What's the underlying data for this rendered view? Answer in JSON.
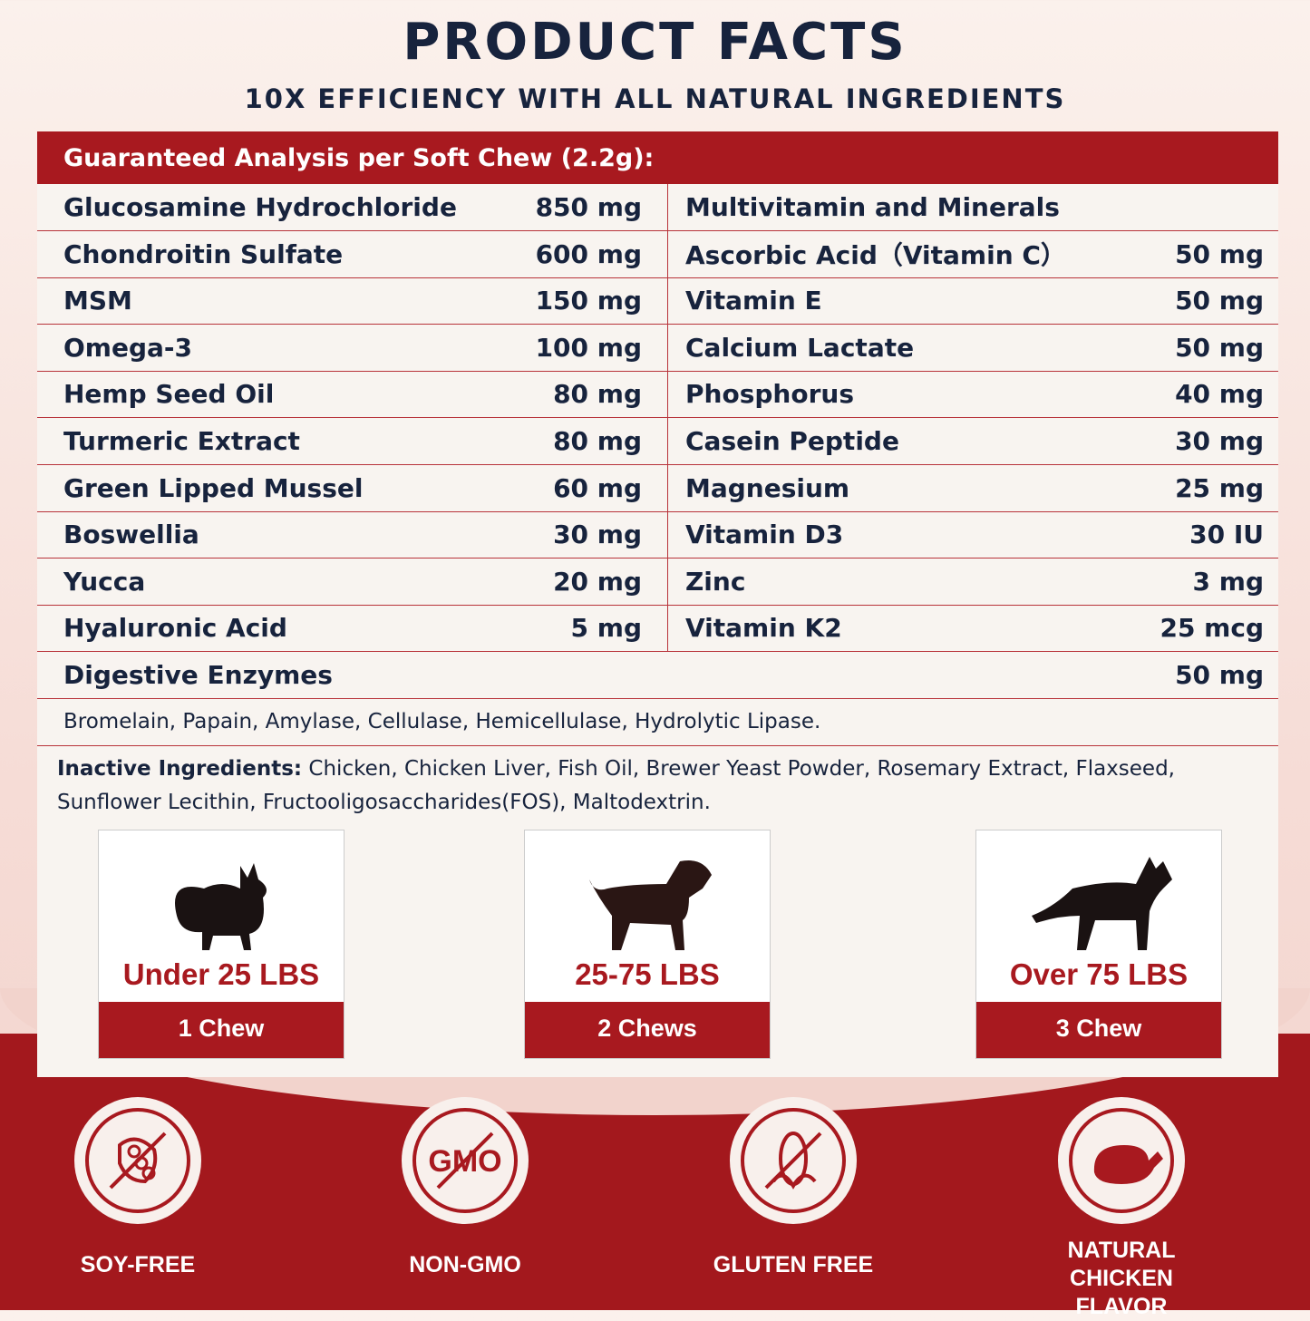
{
  "header": {
    "title": "PRODUCT FACTS",
    "subtitle": "10X EFFICIENCY WITH ALL NATURAL INGREDIENTS"
  },
  "table": {
    "heading": "Guaranteed Analysis per Soft Chew (2.2g):",
    "left": [
      {
        "name": "Glucosamine Hydrochloride",
        "amount": "850 mg"
      },
      {
        "name": "Chondroitin Sulfate",
        "amount": "600 mg"
      },
      {
        "name": "MSM",
        "amount": "150 mg"
      },
      {
        "name": "Omega-3",
        "amount": "100 mg"
      },
      {
        "name": "Hemp Seed Oil",
        "amount": "80 mg"
      },
      {
        "name": "Turmeric Extract",
        "amount": "80 mg"
      },
      {
        "name": "Green Lipped Mussel",
        "amount": "60 mg"
      },
      {
        "name": "Boswellia",
        "amount": "30 mg"
      },
      {
        "name": "Yucca",
        "amount": "20 mg"
      },
      {
        "name": "Hyaluronic Acid",
        "amount": "5  mg"
      }
    ],
    "right": [
      {
        "name": "Multivitamin and Minerals",
        "amount": ""
      },
      {
        "name": "Ascorbic Acid（Vitamin C）",
        "amount": "50 mg"
      },
      {
        "name": "Vitamin E",
        "amount": "50 mg"
      },
      {
        "name": "Calcium Lactate",
        "amount": "50 mg"
      },
      {
        "name": "Phosphorus",
        "amount": "40 mg"
      },
      {
        "name": "Casein Peptide",
        "amount": "30 mg"
      },
      {
        "name": "Magnesium",
        "amount": "25 mg"
      },
      {
        "name": "Vitamin D3",
        "amount": "30 IU"
      },
      {
        "name": "Zinc",
        "amount": "3 mg"
      },
      {
        "name": "Vitamin K2",
        "amount": "25 mcg"
      }
    ],
    "digestive": {
      "name": "Digestive Enzymes",
      "amount": "50 mg"
    },
    "enzymes": "Bromelain, Papain, Amylase, Cellulase, Hemicellulase, Hydrolytic Lipase.",
    "inactive_label": "Inactive Ingredients:",
    "inactive_text": " Chicken, Chicken Liver, Fish Oil, Brewer Yeast Powder, Rosemary Extract, Flaxseed, Sunflower Lecithin, Fructooligosaccharides(FOS), Maltodextrin."
  },
  "dosage": [
    {
      "weight": "Under 25 LBS",
      "chews": "1 Chew",
      "icon": "small-dog-icon"
    },
    {
      "weight": "25-75 LBS",
      "chews": "2 Chews",
      "icon": "medium-dog-icon"
    },
    {
      "weight": "Over 75 LBS",
      "chews": "3 Chew",
      "icon": "large-dog-icon"
    }
  ],
  "badges": [
    {
      "label": "SOY-FREE",
      "icon": "no-soy-icon"
    },
    {
      "label": "NON-GMO",
      "icon": "no-gmo-icon",
      "text": "GMO"
    },
    {
      "label": "GLUTEN FREE",
      "icon": "no-gluten-icon"
    },
    {
      "label": "NATURAL CHICKEN FLAVOR",
      "icon": "chicken-icon"
    }
  ],
  "colors": {
    "accent": "#a8191f",
    "text": "#17233d",
    "panel": "#f8f4f0"
  }
}
